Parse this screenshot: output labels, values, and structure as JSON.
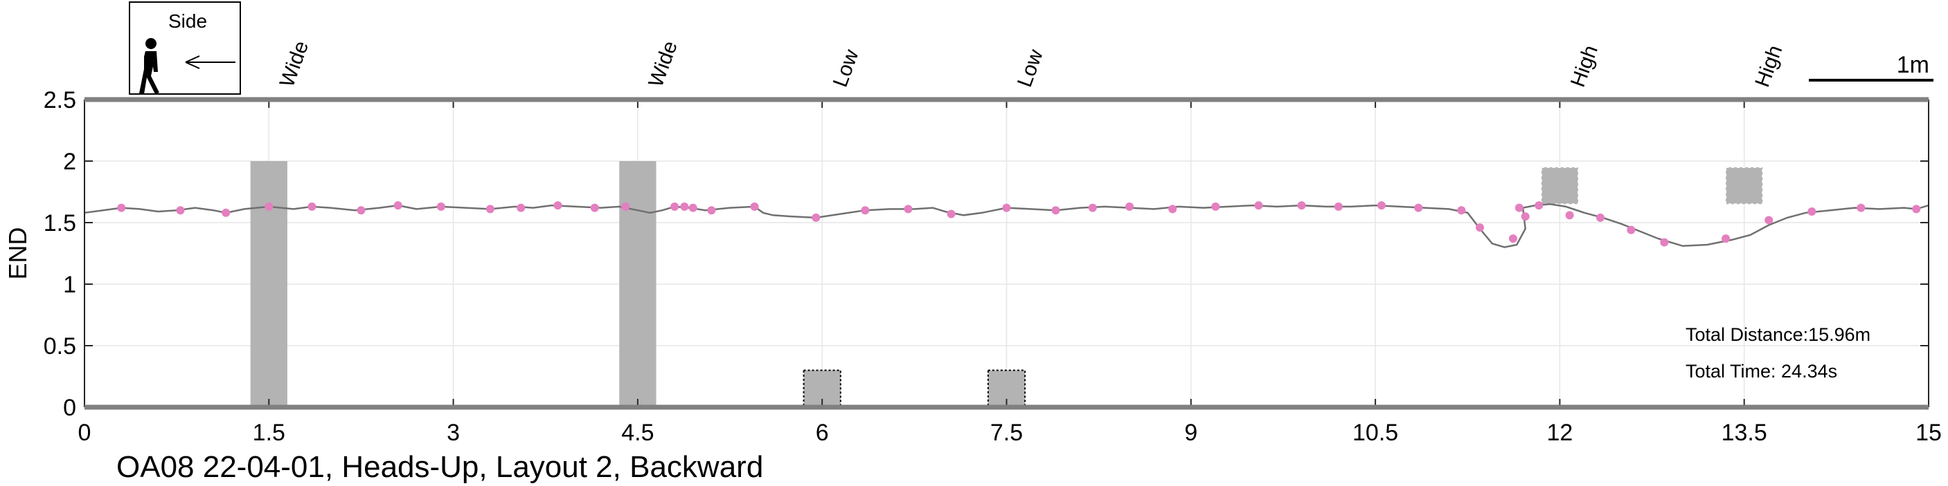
{
  "chart_data": {
    "type": "line",
    "title": "OA08 22-04-01, Heads-Up, Layout 2, Backward",
    "xlabel": "",
    "ylabel": "END",
    "xlim": [
      0,
      15
    ],
    "ylim": [
      0,
      2.5
    ],
    "xticks": [
      "0",
      "1.5",
      "3",
      "4.5",
      "6",
      "7.5",
      "9",
      "10.5",
      "12",
      "13.5",
      "15"
    ],
    "yticks": [
      "0",
      "0.5",
      "1",
      "1.5",
      "2",
      "2.5"
    ],
    "grid": true,
    "colors": {
      "line": "#707070",
      "markers": "#e47fc0",
      "obstacle": "#b3b3b3",
      "axis": "#808080"
    },
    "obstacles": [
      {
        "label": "Wide",
        "kind": "wide",
        "x": [
          1.35,
          1.65
        ],
        "y": [
          0,
          2.0
        ]
      },
      {
        "label": "Wide",
        "kind": "wide",
        "x": [
          4.35,
          4.65
        ],
        "y": [
          0,
          2.0
        ]
      },
      {
        "label": "Low",
        "kind": "low",
        "x": [
          5.85,
          6.15
        ],
        "y": [
          0,
          0.3
        ]
      },
      {
        "label": "Low",
        "kind": "low",
        "x": [
          7.35,
          7.65
        ],
        "y": [
          0,
          0.3
        ]
      },
      {
        "label": "High",
        "kind": "high",
        "x": [
          11.85,
          12.15
        ],
        "y": [
          1.65,
          1.95
        ]
      },
      {
        "label": "High",
        "kind": "high",
        "x": [
          13.35,
          13.65
        ],
        "y": [
          1.65,
          1.95
        ]
      }
    ],
    "series": [
      {
        "values": [
          [
            0.0,
            1.58
          ],
          [
            0.15,
            1.6
          ],
          [
            0.3,
            1.62
          ],
          [
            0.45,
            1.61
          ],
          [
            0.6,
            1.59
          ],
          [
            0.75,
            1.6
          ],
          [
            0.9,
            1.62
          ],
          [
            1.05,
            1.6
          ],
          [
            1.15,
            1.58
          ],
          [
            1.3,
            1.61
          ],
          [
            1.5,
            1.63
          ],
          [
            1.7,
            1.61
          ],
          [
            1.85,
            1.63
          ],
          [
            2.0,
            1.62
          ],
          [
            2.2,
            1.6
          ],
          [
            2.4,
            1.62
          ],
          [
            2.55,
            1.64
          ],
          [
            2.7,
            1.61
          ],
          [
            2.9,
            1.63
          ],
          [
            3.1,
            1.62
          ],
          [
            3.3,
            1.61
          ],
          [
            3.5,
            1.63
          ],
          [
            3.65,
            1.62
          ],
          [
            3.8,
            1.64
          ],
          [
            4.0,
            1.63
          ],
          [
            4.2,
            1.62
          ],
          [
            4.35,
            1.63
          ],
          [
            4.5,
            1.6
          ],
          [
            4.6,
            1.58
          ],
          [
            4.7,
            1.6
          ],
          [
            4.8,
            1.63
          ],
          [
            4.92,
            1.62
          ],
          [
            5.05,
            1.6
          ],
          [
            5.25,
            1.62
          ],
          [
            5.45,
            1.63
          ],
          [
            5.52,
            1.58
          ],
          [
            5.6,
            1.56
          ],
          [
            5.75,
            1.55
          ],
          [
            5.95,
            1.54
          ],
          [
            6.15,
            1.57
          ],
          [
            6.35,
            1.6
          ],
          [
            6.55,
            1.61
          ],
          [
            6.75,
            1.61
          ],
          [
            6.9,
            1.62
          ],
          [
            7.0,
            1.59
          ],
          [
            7.15,
            1.56
          ],
          [
            7.3,
            1.58
          ],
          [
            7.5,
            1.62
          ],
          [
            7.7,
            1.61
          ],
          [
            7.9,
            1.6
          ],
          [
            8.1,
            1.62
          ],
          [
            8.3,
            1.63
          ],
          [
            8.5,
            1.62
          ],
          [
            8.7,
            1.61
          ],
          [
            8.9,
            1.63
          ],
          [
            9.1,
            1.62
          ],
          [
            9.3,
            1.63
          ],
          [
            9.5,
            1.64
          ],
          [
            9.7,
            1.63
          ],
          [
            9.9,
            1.64
          ],
          [
            10.1,
            1.63
          ],
          [
            10.3,
            1.63
          ],
          [
            10.5,
            1.64
          ],
          [
            10.7,
            1.63
          ],
          [
            10.9,
            1.62
          ],
          [
            11.1,
            1.61
          ],
          [
            11.25,
            1.58
          ],
          [
            11.35,
            1.45
          ],
          [
            11.45,
            1.33
          ],
          [
            11.55,
            1.3
          ],
          [
            11.65,
            1.32
          ],
          [
            11.72,
            1.45
          ],
          [
            11.7,
            1.62
          ],
          [
            11.8,
            1.64
          ],
          [
            11.92,
            1.65
          ],
          [
            12.05,
            1.63
          ],
          [
            12.2,
            1.58
          ],
          [
            12.35,
            1.54
          ],
          [
            12.5,
            1.49
          ],
          [
            12.6,
            1.45
          ],
          [
            12.8,
            1.37
          ],
          [
            13.0,
            1.31
          ],
          [
            13.2,
            1.32
          ],
          [
            13.4,
            1.36
          ],
          [
            13.55,
            1.4
          ],
          [
            13.7,
            1.48
          ],
          [
            13.85,
            1.54
          ],
          [
            14.0,
            1.58
          ],
          [
            14.2,
            1.6
          ],
          [
            14.4,
            1.62
          ],
          [
            14.6,
            1.61
          ],
          [
            14.8,
            1.62
          ],
          [
            14.9,
            1.61
          ],
          [
            15.0,
            1.64
          ]
        ],
        "markers": [
          [
            0.3,
            1.62
          ],
          [
            0.78,
            1.6
          ],
          [
            1.15,
            1.58
          ],
          [
            1.5,
            1.63
          ],
          [
            1.85,
            1.63
          ],
          [
            2.25,
            1.6
          ],
          [
            2.55,
            1.64
          ],
          [
            2.9,
            1.63
          ],
          [
            3.3,
            1.61
          ],
          [
            3.55,
            1.62
          ],
          [
            3.85,
            1.64
          ],
          [
            4.15,
            1.62
          ],
          [
            4.4,
            1.63
          ],
          [
            4.8,
            1.63
          ],
          [
            4.88,
            1.63
          ],
          [
            4.95,
            1.62
          ],
          [
            5.1,
            1.6
          ],
          [
            5.45,
            1.63
          ],
          [
            5.95,
            1.54
          ],
          [
            6.35,
            1.6
          ],
          [
            6.7,
            1.61
          ],
          [
            7.05,
            1.57
          ],
          [
            7.5,
            1.62
          ],
          [
            7.9,
            1.6
          ],
          [
            8.2,
            1.62
          ],
          [
            8.5,
            1.63
          ],
          [
            8.85,
            1.61
          ],
          [
            9.2,
            1.63
          ],
          [
            9.55,
            1.64
          ],
          [
            9.9,
            1.64
          ],
          [
            10.2,
            1.63
          ],
          [
            10.55,
            1.64
          ],
          [
            10.85,
            1.62
          ],
          [
            11.2,
            1.6
          ],
          [
            11.35,
            1.46
          ],
          [
            11.62,
            1.37
          ],
          [
            11.67,
            1.62
          ],
          [
            11.72,
            1.55
          ],
          [
            11.83,
            1.64
          ],
          [
            12.08,
            1.56
          ],
          [
            12.33,
            1.54
          ],
          [
            12.58,
            1.44
          ],
          [
            12.85,
            1.34
          ],
          [
            13.35,
            1.37
          ],
          [
            13.7,
            1.52
          ],
          [
            14.05,
            1.59
          ],
          [
            14.45,
            1.62
          ],
          [
            14.9,
            1.61
          ]
        ]
      }
    ],
    "annotations": {
      "total_distance": "Total Distance:15.96m",
      "total_time": "Total Time: 24.34s",
      "scale_bar": "1m",
      "direction_box": "Side"
    }
  }
}
